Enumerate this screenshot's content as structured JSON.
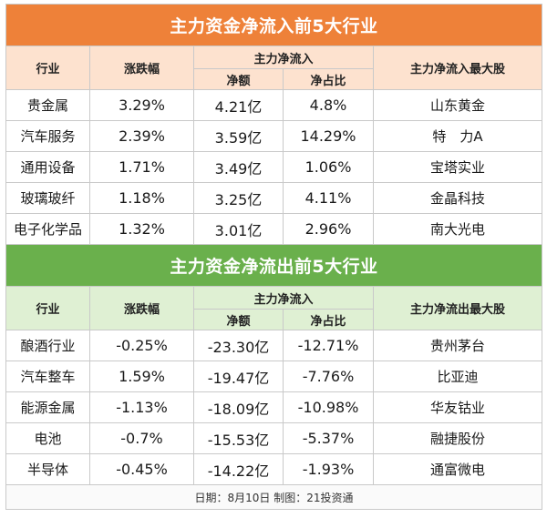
{
  "inflow": {
    "title": "主力资金净流入前5大行业",
    "headers": {
      "industry": "行业",
      "change": "涨跌幅",
      "net_flow": "主力净流入",
      "amount": "净额",
      "ratio": "净占比",
      "top_stock": "主力净流入最大股"
    },
    "rows": [
      {
        "industry": "贵金属",
        "change": "3.29%",
        "amount": "4.21亿",
        "ratio": "4.8%",
        "stock": "山东黄金"
      },
      {
        "industry": "汽车服务",
        "change": "2.39%",
        "amount": "3.59亿",
        "ratio": "14.29%",
        "stock": "特　力A"
      },
      {
        "industry": "通用设备",
        "change": "1.71%",
        "amount": "3.49亿",
        "ratio": "1.06%",
        "stock": "宝塔实业"
      },
      {
        "industry": "玻璃玻纤",
        "change": "1.18%",
        "amount": "3.25亿",
        "ratio": "4.11%",
        "stock": "金晶科技"
      },
      {
        "industry": "电子化学品",
        "change": "1.32%",
        "amount": "3.01亿",
        "ratio": "2.96%",
        "stock": "南大光电"
      }
    ]
  },
  "outflow": {
    "title": "主力资金净流出前5大行业",
    "headers": {
      "industry": "行业",
      "change": "涨跌幅",
      "net_flow": "主力净流入",
      "amount": "净额",
      "ratio": "净占比",
      "top_stock": "主力净流出最大股"
    },
    "rows": [
      {
        "industry": "酿酒行业",
        "change": "-0.25%",
        "amount": "-23.30亿",
        "ratio": "-12.71%",
        "stock": "贵州茅台"
      },
      {
        "industry": "汽车整车",
        "change": "1.59%",
        "amount": "-19.47亿",
        "ratio": "-7.76%",
        "stock": "比亚迪"
      },
      {
        "industry": "能源金属",
        "change": "-1.13%",
        "amount": "-18.09亿",
        "ratio": "-10.98%",
        "stock": "华友钴业"
      },
      {
        "industry": "电池",
        "change": "-0.7%",
        "amount": "-15.53亿",
        "ratio": "-5.37%",
        "stock": "融捷股份"
      },
      {
        "industry": "半导体",
        "change": "-0.45%",
        "amount": "-14.22亿",
        "ratio": "-1.93%",
        "stock": "通富微电"
      }
    ]
  },
  "footer": "日期：8月10日 制图：21投资通"
}
